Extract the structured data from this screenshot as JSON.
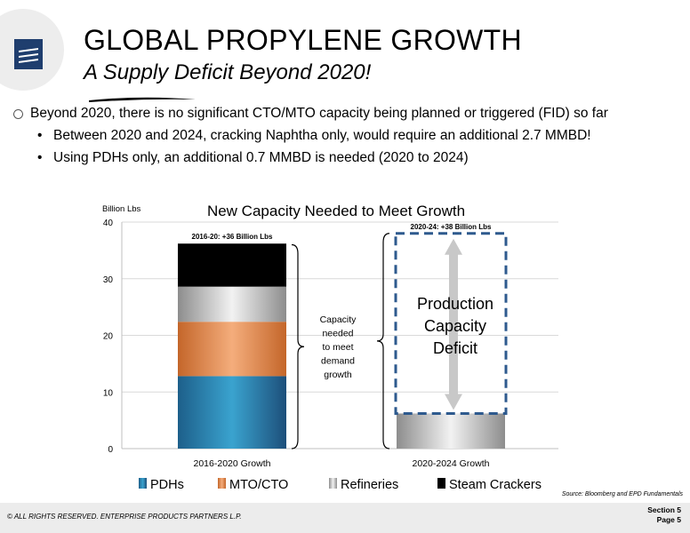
{
  "header": {
    "title": "GLOBAL PROPYLENE GROWTH",
    "subtitle": "A Supply Deficit Beyond 2020!"
  },
  "bullets": {
    "main": "Beyond 2020, there is no significant CTO/MTO capacity being planned or triggered (FID) so far",
    "sub": [
      "Between 2020 and 2024, cracking Naphtha only, would require an additional 2.7 MMBD!",
      "Using PDHs only, an additional 0.7 MMBD is needed (2020 to 2024)"
    ]
  },
  "chart_data": {
    "type": "bar",
    "title": "New Capacity Needed to Meet Growth",
    "ylabel": "Billion Lbs",
    "ylim": [
      0,
      40
    ],
    "yticks": [
      "0",
      "10",
      "20",
      "30",
      "40"
    ],
    "categories": [
      "2016-2020 Growth",
      "2020-2024 Growth"
    ],
    "series": [
      {
        "name": "PDHs",
        "values": [
          12.8,
          0
        ]
      },
      {
        "name": "MTO/CTO",
        "values": [
          9.6,
          0
        ]
      },
      {
        "name": "Refineries",
        "values": [
          6.2,
          6.2
        ]
      },
      {
        "name": "Steam Crackers",
        "values": [
          7.6,
          0
        ]
      }
    ],
    "deficit": {
      "from": 6.2,
      "to": 38
    },
    "colors": {
      "PDHs": "#2c8fb9",
      "MTO/CTO": "#e8935a",
      "Refineries": "#c8c8c8",
      "Steam Crackers": "#7f6f9f",
      "deficit_border": "#2e5a8e",
      "arrow": "#c8c8c8"
    },
    "annotations": {
      "bar1_label": "2016-20: +36 Billion Lbs",
      "bar2_label": "2020-24: +38 Billion Lbs",
      "capacity_note": [
        "Capacity",
        "needed",
        "to meet",
        "demand",
        "growth"
      ],
      "deficit_text": [
        "Production",
        "Capacity",
        "Deficit"
      ]
    },
    "grid": true,
    "legend_position": "bottom"
  },
  "source": "Source: Bloomberg and EPD Fundamentals",
  "footer": {
    "copyright": "© ALL RIGHTS RESERVED. ENTERPRISE PRODUCTS PARTNERS L.P.",
    "section": "Section 5",
    "page": "Page 5"
  }
}
